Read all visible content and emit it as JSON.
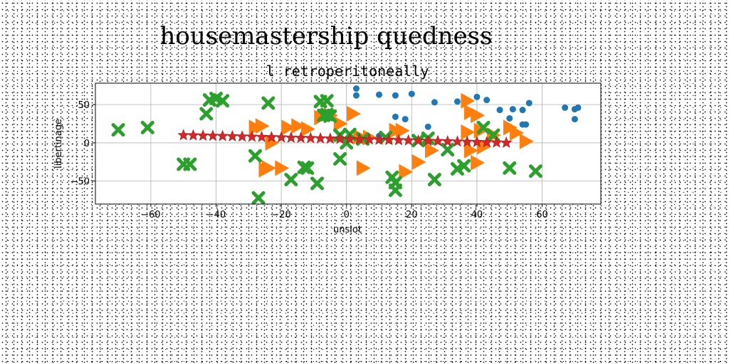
{
  "chart_data": {
    "type": "scatter",
    "title": "housemastership quedness",
    "subtitle": "l retroperitoneally",
    "xlabel": "unslot",
    "ylabel": "libertinage",
    "xlim": [
      -77,
      78
    ],
    "ylim": [
      -80,
      78
    ],
    "xticks": [
      -60,
      -40,
      -20,
      0,
      20,
      40,
      60
    ],
    "yticks": [
      -50,
      0,
      50
    ],
    "grid": true,
    "colors": {
      "circle": "#1f77b4",
      "triangle": "#ff7f0e",
      "cross": "#2ca02c",
      "star": "#d62728"
    },
    "series": [
      {
        "marker": "circle",
        "x": [
          3,
          3,
          10,
          15,
          10,
          20,
          15,
          18,
          25,
          27,
          40,
          34,
          43,
          47,
          50,
          51,
          54,
          55,
          54,
          56,
          67,
          70,
          71,
          70
        ],
        "y": [
          71,
          62,
          63,
          62,
          9,
          64,
          34,
          31,
          21,
          53,
          60,
          54,
          56,
          43,
          32,
          44,
          43,
          24,
          24,
          52,
          46,
          44,
          46,
          31
        ]
      },
      {
        "marker": "triangle",
        "x": [
          -28,
          -26,
          -23,
          -18,
          -15,
          -12,
          -8,
          -5,
          -2,
          2,
          -25,
          -24,
          -20,
          5,
          7,
          17,
          18,
          22,
          26,
          37,
          38,
          40,
          41,
          42,
          45,
          50,
          52,
          55,
          37,
          38,
          40,
          4,
          15
        ],
        "y": [
          20,
          22,
          0,
          20,
          22,
          18,
          33,
          36,
          25,
          38,
          -35,
          -33,
          -33,
          -33,
          7,
          16,
          -38,
          -25,
          -10,
          55,
          40,
          36,
          16,
          -5,
          10,
          20,
          13,
          2,
          14,
          -10,
          -26,
          8,
          16
        ]
      },
      {
        "marker": "cross",
        "x": [
          -70,
          -61,
          -50,
          -48,
          -43,
          -42,
          -38,
          -28,
          -27,
          -24,
          -17,
          -13,
          -12,
          -9,
          -6,
          -5,
          -2,
          -2,
          -2,
          1,
          14,
          15,
          15,
          22,
          27,
          31,
          34,
          36,
          42,
          45,
          50,
          58
        ],
        "y": [
          17,
          20,
          -28,
          -28,
          38,
          56,
          55,
          -17,
          -72,
          52,
          -48,
          -32,
          -33,
          -53,
          37,
          35,
          10,
          -21,
          10,
          11,
          -45,
          -52,
          -62,
          3,
          -48,
          -9,
          -34,
          -30,
          20,
          10,
          -33,
          -37
        ],
        "extra_x": [
          -6,
          -7,
          -40,
          -8,
          0,
          5,
          25,
          12
        ],
        "extra_y": [
          55,
          36,
          58,
          54,
          0,
          5,
          6,
          7
        ]
      },
      {
        "marker": "star",
        "x": [
          -50,
          -47,
          -44,
          -41,
          -38,
          -35,
          -32,
          -29,
          -26,
          -23,
          -20,
          -17,
          -14,
          -11,
          -8,
          -5,
          -2,
          1,
          4,
          7,
          10,
          13,
          16,
          19,
          22,
          25,
          28,
          31,
          34,
          37,
          40,
          43,
          46,
          49
        ],
        "y": [
          10,
          9.7,
          9.4,
          9.1,
          8.8,
          8.5,
          8.2,
          7.9,
          7.6,
          7.3,
          7.0,
          6.7,
          6.4,
          6.1,
          5.8,
          5.5,
          5.2,
          4.9,
          4.6,
          4.3,
          4.0,
          3.7,
          3.4,
          3.1,
          2.8,
          2.5,
          2.2,
          1.9,
          1.6,
          1.3,
          1.0,
          0.7,
          0.4,
          0.1
        ]
      }
    ]
  }
}
